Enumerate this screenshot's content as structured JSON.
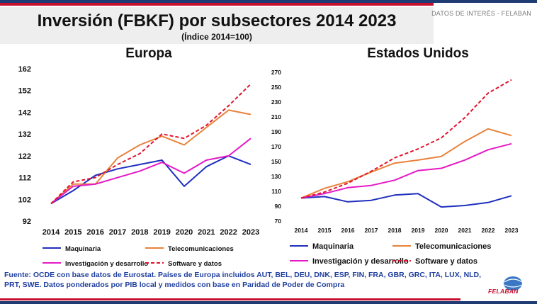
{
  "header": {
    "title": "Inversión (FBKF) por subsectores 2014 2023",
    "subtitle": "(Índice 2014=100)",
    "tagline": "DATOS DE INTERÉS - FELABAN"
  },
  "footer": {
    "source": "Fuente: OCDE con base datos de Eurostat. Países de Europa incluidos AUT, BEL, DEU, DNK, ESP, FIN, FRA, GBR, GRC, ITA, LUX, NLD, PRT, SWE. Datos ponderados por PIB local y medidos con base en Paridad de Poder de Compra",
    "logo_text": "FELABAN"
  },
  "colors": {
    "maquinaria": "#1f2fbf",
    "telecom": "#e8823a",
    "investigacion": "#e619c6",
    "software": "#e3122b",
    "navy": "#1f3b73",
    "red": "#c8102e"
  },
  "chart_data": [
    {
      "type": "line",
      "title": "Europa",
      "x": [
        "2014",
        "2015",
        "2016",
        "2017",
        "2018",
        "2019",
        "2020",
        "2021",
        "2022",
        "2023"
      ],
      "ylim": [
        92,
        162
      ],
      "yticks": [
        92,
        102,
        112,
        122,
        132,
        142,
        152,
        162
      ],
      "grid": false,
      "legend": "bottom",
      "series": [
        {
          "name": "Maquinaria",
          "values": [
            100,
            106,
            113,
            116,
            118,
            120,
            108,
            117,
            122,
            118
          ]
        },
        {
          "name": "Telecomunicaciones",
          "values": [
            100,
            109,
            109,
            121,
            127,
            131,
            127,
            135,
            143,
            141
          ]
        },
        {
          "name": "Investigación y desarrollo",
          "values": [
            100,
            108,
            109,
            112,
            115,
            119,
            114,
            120,
            122,
            130
          ]
        },
        {
          "name": "Software y datos",
          "values": [
            100,
            110,
            112,
            118,
            123,
            132,
            130,
            136,
            145,
            155
          ]
        }
      ]
    },
    {
      "type": "line",
      "title": "Estados Unidos",
      "x": [
        "2014",
        "2015",
        "2016",
        "2017",
        "2018",
        "2019",
        "2020",
        "2021",
        "2022",
        "2023"
      ],
      "ylim": [
        70,
        270
      ],
      "yticks": [
        70,
        90,
        110,
        130,
        150,
        170,
        190,
        210,
        230,
        250,
        270
      ],
      "grid": false,
      "legend": "bottom",
      "series": [
        {
          "name": "Maquinaria",
          "values": [
            100,
            102,
            95,
            97,
            104,
            106,
            88,
            90,
            94,
            103
          ]
        },
        {
          "name": "Telecomunicaciones",
          "values": [
            100,
            113,
            122,
            135,
            147,
            151,
            156,
            176,
            193,
            184
          ]
        },
        {
          "name": "Investigación y desarrollo",
          "values": [
            100,
            106,
            114,
            117,
            124,
            137,
            140,
            151,
            165,
            173
          ]
        },
        {
          "name": "Software y datos",
          "values": [
            100,
            108,
            120,
            136,
            154,
            166,
            181,
            208,
            241,
            259
          ]
        }
      ]
    }
  ]
}
